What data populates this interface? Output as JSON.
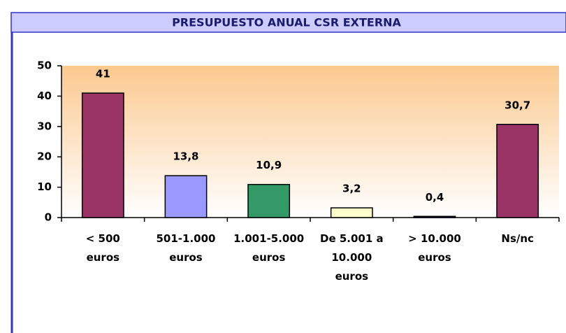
{
  "chart_data": {
    "type": "bar",
    "title": "PRESUPUESTO ANUAL CSR EXTERNA",
    "categories": [
      "< 500\neuros",
      "501-1.000\neuros",
      "1.001-5.000\neuros",
      "De 5.001 a\n10.000\neuros",
      "> 10.000\neuros",
      "Ns/nc"
    ],
    "values": [
      41,
      13.8,
      10.9,
      3.2,
      0.4,
      30.7
    ],
    "value_labels": [
      "41",
      "13,8",
      "10,9",
      "3,2",
      "0,4",
      "30,7"
    ],
    "colors": [
      "#993366",
      "#9999ff",
      "#339966",
      "#ffffcc",
      "#000080",
      "#993366"
    ],
    "label_colors": [
      "#000000",
      "#000000",
      "#000000",
      "#000000",
      "#1f1f8f",
      "#1f1f8f"
    ],
    "ylim": [
      0,
      50
    ],
    "yticks": [
      0,
      10,
      20,
      30,
      40,
      50
    ],
    "grid": false
  }
}
